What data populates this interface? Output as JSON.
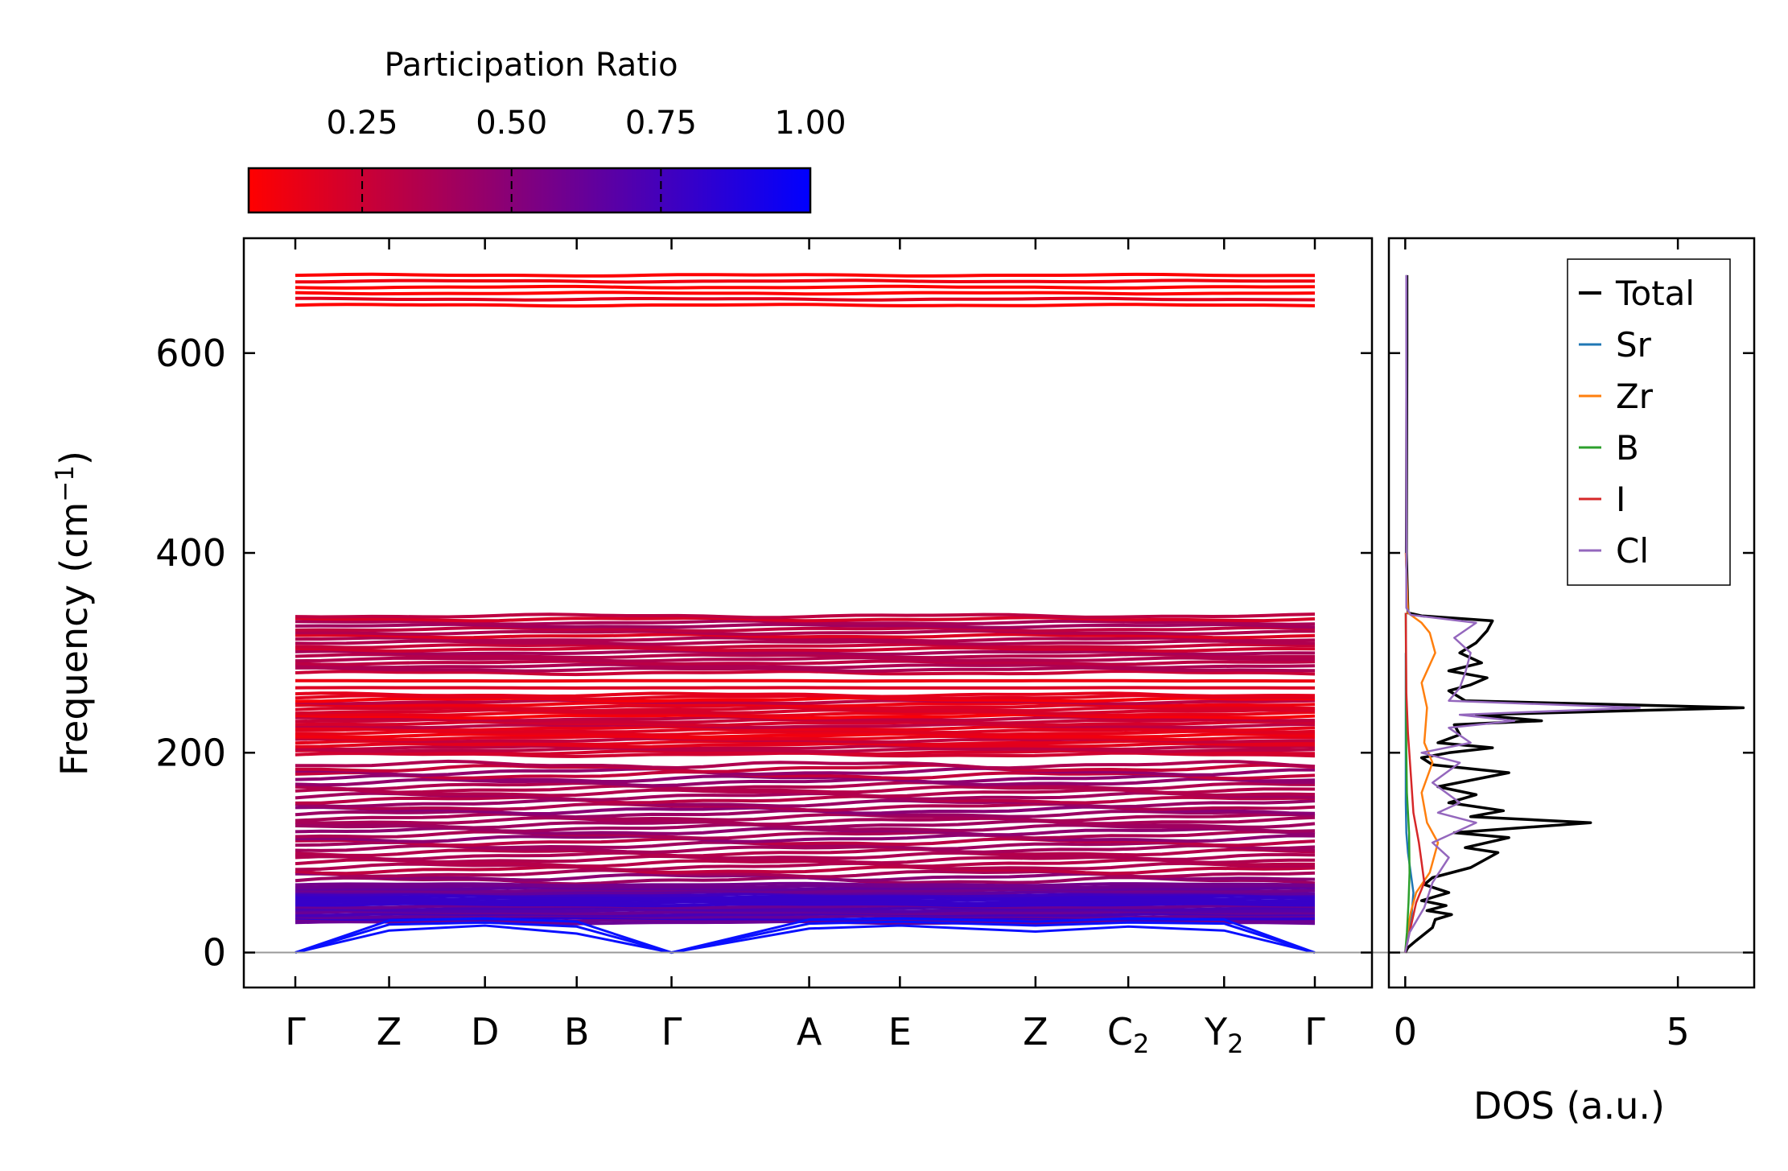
{
  "colorbar": {
    "label": "Participation Ratio",
    "range": [
      0.06,
      1.0
    ],
    "ticks": [
      "0.25",
      "0.50",
      "0.75",
      "1.00"
    ],
    "tick_values": [
      0.25,
      0.5,
      0.75,
      1.0
    ],
    "low_color": "#ff0000",
    "high_color": "#0000ff"
  },
  "chart_data": [
    {
      "type": "line",
      "name": "phonon-band-structure",
      "title": "",
      "xlabel": "",
      "ylabel_main": "Frequency (cm",
      "ylabel_sup": "−1",
      "ylabel_close": ")",
      "ylim": [
        -35,
        715
      ],
      "yticks": [
        0,
        200,
        400,
        600
      ],
      "ytick_labels": [
        "0",
        "200",
        "400",
        "600"
      ],
      "kpath": [
        {
          "label": "Γ",
          "sub": "",
          "pos": 0.0
        },
        {
          "label": "Z",
          "sub": "",
          "pos": 0.092
        },
        {
          "label": "D",
          "sub": "",
          "pos": 0.186
        },
        {
          "label": "B",
          "sub": "",
          "pos": 0.276
        },
        {
          "label": "Γ",
          "sub": "",
          "pos": 0.369
        },
        {
          "label": "A",
          "sub": "",
          "pos": 0.504
        },
        {
          "label": "E",
          "sub": "",
          "pos": 0.593
        },
        {
          "label": "Z",
          "sub": "",
          "pos": 0.726
        },
        {
          "label": "C",
          "sub": "2",
          "pos": 0.817
        },
        {
          "label": "Y",
          "sub": "2",
          "pos": 0.911
        },
        {
          "label": "Γ",
          "sub": "",
          "pos": 1.0
        }
      ],
      "zero_line": 0,
      "bands": [
        {
          "name": "high-frequency-modes",
          "fmin": 648,
          "fmax": 678,
          "pr": 0.06,
          "count": 6
        },
        {
          "name": "upper-mixed-block",
          "fmin": 280,
          "fmax": 337,
          "pr": 0.3,
          "count": 18
        },
        {
          "name": "mid-modes",
          "fmin": 265,
          "fmax": 272,
          "pr": 0.08,
          "count": 2
        },
        {
          "name": "dense-block",
          "fmin": 198,
          "fmax": 258,
          "pr": 0.2,
          "count": 26
        },
        {
          "name": "lower-mixed-block",
          "fmin": 72,
          "fmax": 188,
          "pr": 0.38,
          "count": 34
        },
        {
          "name": "low-optical-block",
          "fmin": 30,
          "fmax": 68,
          "pr": 0.7,
          "count": 20
        }
      ],
      "acoustic": [
        {
          "name": "acoustic-branch",
          "pts": [
            [
              0.0,
              0
            ],
            [
              0.092,
              22
            ],
            [
              0.186,
              27
            ],
            [
              0.276,
              19
            ],
            [
              0.369,
              0
            ],
            [
              0.504,
              24
            ],
            [
              0.593,
              27
            ],
            [
              0.726,
              21
            ],
            [
              0.817,
              26
            ],
            [
              0.911,
              22
            ],
            [
              1.0,
              0
            ]
          ]
        },
        {
          "name": "acoustic-branch",
          "pts": [
            [
              0.0,
              0
            ],
            [
              0.092,
              28
            ],
            [
              0.186,
              30
            ],
            [
              0.276,
              26
            ],
            [
              0.369,
              0
            ],
            [
              0.504,
              29
            ],
            [
              0.593,
              31
            ],
            [
              0.726,
              27
            ],
            [
              0.817,
              30
            ],
            [
              0.911,
              29
            ],
            [
              1.0,
              0
            ]
          ]
        },
        {
          "name": "acoustic-branch",
          "pts": [
            [
              0.0,
              0
            ],
            [
              0.092,
              32
            ],
            [
              0.186,
              34
            ],
            [
              0.276,
              31
            ],
            [
              0.369,
              0
            ],
            [
              0.504,
              33
            ],
            [
              0.593,
              34
            ],
            [
              0.726,
              31
            ],
            [
              0.817,
              34
            ],
            [
              0.911,
              33
            ],
            [
              1.0,
              0
            ]
          ]
        }
      ]
    },
    {
      "type": "line",
      "name": "density-of-states",
      "xlabel": "DOS (a.u.)",
      "xlim": [
        -0.3,
        6.4
      ],
      "xticks": [
        0,
        5
      ],
      "xtick_labels": [
        "0",
        "5"
      ],
      "ylim": [
        -35,
        715
      ],
      "legend_position": "top-right",
      "series": [
        {
          "name": "Total",
          "color": "#000000",
          "points": [
            [
              0,
              0
            ],
            [
              0.05,
              5
            ],
            [
              0.2,
              12
            ],
            [
              0.5,
              25
            ],
            [
              0.55,
              33
            ],
            [
              0.85,
              38
            ],
            [
              0.4,
              42
            ],
            [
              0.75,
              47
            ],
            [
              0.3,
              52
            ],
            [
              0.8,
              60
            ],
            [
              0.35,
              68
            ],
            [
              0.5,
              75
            ],
            [
              1.2,
              85
            ],
            [
              1.7,
              100
            ],
            [
              1.1,
              105
            ],
            [
              1.9,
              115
            ],
            [
              0.9,
              120
            ],
            [
              3.4,
              130
            ],
            [
              1.2,
              136
            ],
            [
              1.8,
              142
            ],
            [
              0.8,
              150
            ],
            [
              1.3,
              158
            ],
            [
              0.6,
              166
            ],
            [
              1.9,
              180
            ],
            [
              0.5,
              188
            ],
            [
              0.3,
              195
            ],
            [
              0.8,
              200
            ],
            [
              1.6,
              205
            ],
            [
              0.6,
              210
            ],
            [
              1.0,
              218
            ],
            [
              0.9,
              228
            ],
            [
              2.5,
              232
            ],
            [
              1.3,
              238
            ],
            [
              6.2,
              245
            ],
            [
              1.1,
              252
            ],
            [
              0.8,
              262
            ],
            [
              1.2,
              268
            ],
            [
              1.5,
              275
            ],
            [
              0.8,
              282
            ],
            [
              1.4,
              290
            ],
            [
              1.0,
              300
            ],
            [
              1.3,
              310
            ],
            [
              1.5,
              322
            ],
            [
              1.6,
              332
            ],
            [
              0.3,
              337
            ],
            [
              0.05,
              340
            ],
            [
              0.02,
              400
            ],
            [
              0.03,
              600
            ],
            [
              0.03,
              678
            ]
          ]
        },
        {
          "name": "Sr",
          "color": "#1f77b4",
          "points": [
            [
              0,
              0
            ],
            [
              0.05,
              20
            ],
            [
              0.12,
              40
            ],
            [
              0.15,
              60
            ],
            [
              0.1,
              80
            ],
            [
              0.05,
              100
            ],
            [
              0.02,
              120
            ],
            [
              0.01,
              150
            ],
            [
              0.01,
              300
            ]
          ]
        },
        {
          "name": "Zr",
          "color": "#ff7f0e",
          "points": [
            [
              0,
              0
            ],
            [
              0.04,
              20
            ],
            [
              0.1,
              40
            ],
            [
              0.2,
              60
            ],
            [
              0.45,
              80
            ],
            [
              0.6,
              110
            ],
            [
              0.4,
              130
            ],
            [
              0.3,
              160
            ],
            [
              0.5,
              190
            ],
            [
              0.35,
              210
            ],
            [
              0.4,
              245
            ],
            [
              0.3,
              270
            ],
            [
              0.55,
              300
            ],
            [
              0.45,
              320
            ],
            [
              0.3,
              330
            ],
            [
              0.05,
              340
            ],
            [
              0.01,
              400
            ]
          ]
        },
        {
          "name": "B",
          "color": "#2ca02c",
          "points": [
            [
              0,
              0
            ],
            [
              0.03,
              20
            ],
            [
              0.06,
              50
            ],
            [
              0.08,
              80
            ],
            [
              0.07,
              120
            ],
            [
              0.03,
              160
            ],
            [
              0.02,
              200
            ],
            [
              0.01,
              340
            ]
          ]
        },
        {
          "name": "I",
          "color": "#d62728",
          "points": [
            [
              0,
              0
            ],
            [
              0.08,
              20
            ],
            [
              0.2,
              50
            ],
            [
              0.35,
              70
            ],
            [
              0.3,
              90
            ],
            [
              0.25,
              110
            ],
            [
              0.15,
              140
            ],
            [
              0.1,
              180
            ],
            [
              0.05,
              220
            ],
            [
              0.02,
              260
            ],
            [
              0.01,
              340
            ]
          ]
        },
        {
          "name": "Cl",
          "color": "#9467bd",
          "points": [
            [
              0,
              0
            ],
            [
              0.02,
              5
            ],
            [
              0.08,
              20
            ],
            [
              0.35,
              45
            ],
            [
              0.5,
              70
            ],
            [
              0.8,
              95
            ],
            [
              0.5,
              110
            ],
            [
              1.3,
              130
            ],
            [
              0.6,
              140
            ],
            [
              1.0,
              150
            ],
            [
              0.5,
              170
            ],
            [
              1.0,
              190
            ],
            [
              0.3,
              200
            ],
            [
              1.2,
              210
            ],
            [
              0.8,
              225
            ],
            [
              2.0,
              232
            ],
            [
              1.0,
              238
            ],
            [
              4.3,
              245
            ],
            [
              0.8,
              252
            ],
            [
              1.0,
              265
            ],
            [
              1.1,
              280
            ],
            [
              1.2,
              300
            ],
            [
              0.9,
              315
            ],
            [
              1.3,
              330
            ],
            [
              0.1,
              338
            ],
            [
              0.02,
              345
            ],
            [
              0.02,
              500
            ],
            [
              0.02,
              678
            ]
          ]
        }
      ]
    }
  ]
}
